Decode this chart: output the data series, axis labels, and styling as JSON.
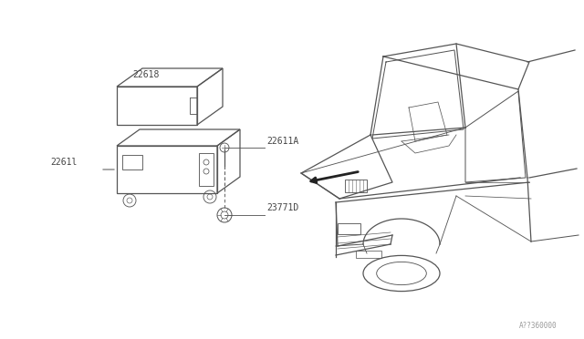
{
  "background_color": "#ffffff",
  "line_color": "#555555",
  "label_color": "#444444",
  "fig_width": 6.4,
  "fig_height": 3.72,
  "dpi": 100,
  "watermark": "A??360000",
  "parts": {
    "22618": {
      "label": "22618"
    },
    "22611": {
      "label": "2261l"
    },
    "22611A": {
      "label": "22611A"
    },
    "23771D": {
      "label": "23771D"
    }
  }
}
